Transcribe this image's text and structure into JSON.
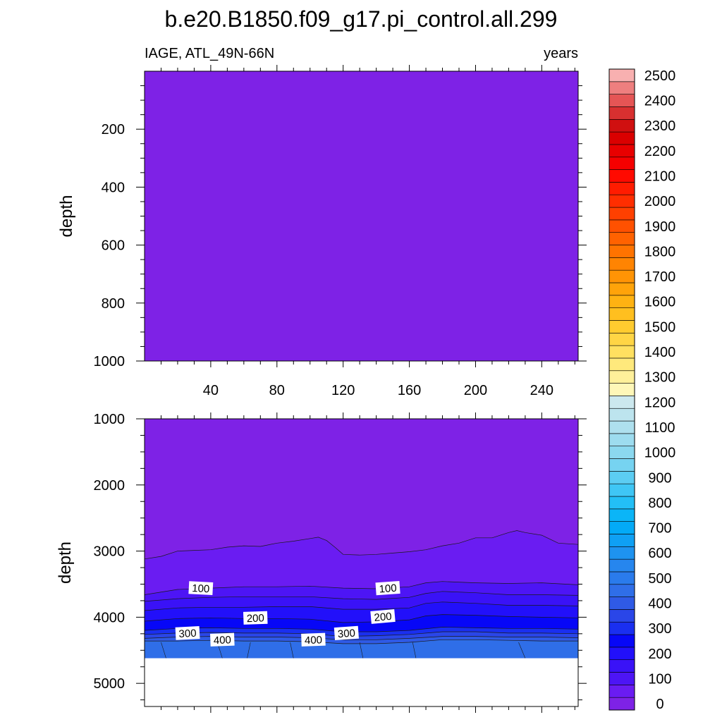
{
  "figure": {
    "title": "b.e20.B1850.f09_g17.pi_control.all.299",
    "subtitle_left": "IAGE, ATL_49N-66N",
    "subtitle_right": "years"
  },
  "chart_data": [
    {
      "type": "heatmap",
      "panel": "upper",
      "title": "",
      "xlabel": "",
      "ylabel": "depth",
      "xlim": [
        0,
        262
      ],
      "ylim": [
        1000,
        0
      ],
      "y_reversed": true,
      "x_ticks": [
        40,
        80,
        120,
        160,
        200,
        240
      ],
      "x_tick_labels": [
        "40",
        "80",
        "120",
        "160",
        "200",
        "240"
      ],
      "y_ticks": [
        200,
        400,
        600,
        800,
        1000
      ],
      "y_tick_labels": [
        "200",
        "400",
        "600",
        "800",
        "1000"
      ],
      "fill_level_lower": 0,
      "fill_level_upper": 50,
      "contour_lines": [],
      "contour_labels": []
    },
    {
      "type": "heatmap",
      "panel": "lower",
      "title": "",
      "xlabel": "",
      "ylabel": "depth",
      "xlim": [
        0,
        262
      ],
      "ylim": [
        5350,
        1000
      ],
      "y_reversed": true,
      "y_ticks": [
        1000,
        2000,
        3000,
        4000,
        5000
      ],
      "y_tick_labels": [
        "1000",
        "2000",
        "3000",
        "4000",
        "5000"
      ],
      "ocean_bottom_depth": 4620,
      "background_level_lower": 0,
      "background_level_upper": 50,
      "contour_lines": [
        {
          "level": 50,
          "level_lower": 50,
          "level_upper": 100,
          "points": [
            [
              0,
              3120
            ],
            [
              10,
              3080
            ],
            [
              20,
              3000
            ],
            [
              30,
              2990
            ],
            [
              40,
              2980
            ],
            [
              50,
              2940
            ],
            [
              60,
              2920
            ],
            [
              70,
              2930
            ],
            [
              80,
              2880
            ],
            [
              90,
              2850
            ],
            [
              100,
              2810
            ],
            [
              105,
              2790
            ],
            [
              110,
              2840
            ],
            [
              115,
              2940
            ],
            [
              120,
              3050
            ],
            [
              130,
              3060
            ],
            [
              140,
              3050
            ],
            [
              150,
              3030
            ],
            [
              160,
              3010
            ],
            [
              170,
              2980
            ],
            [
              180,
              2920
            ],
            [
              190,
              2880
            ],
            [
              200,
              2800
            ],
            [
              210,
              2800
            ],
            [
              220,
              2720
            ],
            [
              225,
              2690
            ],
            [
              230,
              2720
            ],
            [
              240,
              2760
            ],
            [
              250,
              2880
            ],
            [
              262,
              2900
            ]
          ]
        },
        {
          "level": 100,
          "level_lower": 100,
          "level_upper": 150,
          "points": [
            [
              0,
              3660
            ],
            [
              20,
              3580
            ],
            [
              40,
              3560
            ],
            [
              60,
              3540
            ],
            [
              80,
              3540
            ],
            [
              100,
              3530
            ],
            [
              120,
              3560
            ],
            [
              140,
              3570
            ],
            [
              160,
              3540
            ],
            [
              170,
              3480
            ],
            [
              180,
              3460
            ],
            [
              200,
              3480
            ],
            [
              220,
              3490
            ],
            [
              240,
              3480
            ],
            [
              262,
              3510
            ]
          ]
        },
        {
          "level": 150,
          "level_lower": 150,
          "level_upper": 200,
          "points": [
            [
              0,
              3760
            ],
            [
              20,
              3720
            ],
            [
              40,
              3700
            ],
            [
              60,
              3690
            ],
            [
              80,
              3690
            ],
            [
              100,
              3690
            ],
            [
              120,
              3720
            ],
            [
              140,
              3730
            ],
            [
              160,
              3700
            ],
            [
              170,
              3640
            ],
            [
              180,
              3610
            ],
            [
              200,
              3630
            ],
            [
              220,
              3660
            ],
            [
              240,
              3660
            ],
            [
              262,
              3670
            ]
          ]
        },
        {
          "level": 200,
          "level_lower": 200,
          "level_upper": 250,
          "points": [
            [
              0,
              3900
            ],
            [
              20,
              3860
            ],
            [
              40,
              3850
            ],
            [
              60,
              3850
            ],
            [
              80,
              3840
            ],
            [
              100,
              3840
            ],
            [
              120,
              3880
            ],
            [
              140,
              3880
            ],
            [
              160,
              3860
            ],
            [
              170,
              3790
            ],
            [
              180,
              3770
            ],
            [
              200,
              3790
            ],
            [
              220,
              3820
            ],
            [
              240,
              3820
            ],
            [
              262,
              3830
            ]
          ]
        },
        {
          "level": 250,
          "level_lower": 250,
          "level_upper": 300,
          "points": [
            [
              0,
              4060
            ],
            [
              20,
              4020
            ],
            [
              40,
              4010
            ],
            [
              60,
              4020
            ],
            [
              80,
              4020
            ],
            [
              100,
              4030
            ],
            [
              120,
              4080
            ],
            [
              140,
              4070
            ],
            [
              160,
              4040
            ],
            [
              170,
              3980
            ],
            [
              180,
              3960
            ],
            [
              200,
              3970
            ],
            [
              220,
              3990
            ],
            [
              240,
              4000
            ],
            [
              262,
              4010
            ]
          ]
        },
        {
          "level": 300,
          "level_lower": 300,
          "level_upper": 350,
          "points": [
            [
              0,
              4200
            ],
            [
              20,
              4170
            ],
            [
              40,
              4160
            ],
            [
              60,
              4170
            ],
            [
              80,
              4170
            ],
            [
              100,
              4180
            ],
            [
              120,
              4220
            ],
            [
              140,
              4220
            ],
            [
              160,
              4200
            ],
            [
              180,
              4150
            ],
            [
              200,
              4160
            ],
            [
              220,
              4170
            ],
            [
              240,
              4170
            ],
            [
              262,
              4180
            ]
          ]
        },
        {
          "level": 350,
          "level_lower": 350,
          "level_upper": 400,
          "points": [
            [
              0,
              4260
            ],
            [
              20,
              4240
            ],
            [
              40,
              4230
            ],
            [
              60,
              4240
            ],
            [
              80,
              4240
            ],
            [
              100,
              4250
            ],
            [
              120,
              4290
            ],
            [
              140,
              4280
            ],
            [
              160,
              4260
            ],
            [
              180,
              4220
            ],
            [
              200,
              4220
            ],
            [
              220,
              4240
            ],
            [
              240,
              4240
            ],
            [
              262,
              4250
            ]
          ]
        },
        {
          "level": 400,
          "level_lower": 400,
          "level_upper": 450,
          "points": [
            [
              0,
              4320
            ],
            [
              20,
              4300
            ],
            [
              40,
              4290
            ],
            [
              60,
              4300
            ],
            [
              80,
              4300
            ],
            [
              100,
              4310
            ],
            [
              120,
              4340
            ],
            [
              140,
              4340
            ],
            [
              160,
              4320
            ],
            [
              180,
              4290
            ],
            [
              200,
              4290
            ],
            [
              220,
              4300
            ],
            [
              240,
              4300
            ],
            [
              262,
              4310
            ]
          ]
        },
        {
          "level": 450,
          "level_lower": 450,
          "level_upper": 500,
          "points": [
            [
              0,
              4360
            ],
            [
              20,
              4360
            ],
            [
              40,
              4350
            ],
            [
              60,
              4360
            ],
            [
              80,
              4360
            ],
            [
              100,
              4370
            ],
            [
              120,
              4400
            ],
            [
              140,
              4400
            ],
            [
              160,
              4380
            ],
            [
              180,
              4340
            ],
            [
              200,
              4340
            ],
            [
              220,
              4350
            ],
            [
              240,
              4360
            ],
            [
              262,
              4360
            ]
          ]
        }
      ],
      "contour_labels": [
        {
          "text": "100",
          "x": 34,
          "y": 3560,
          "angle": 3
        },
        {
          "text": "100",
          "x": 147,
          "y": 3560,
          "angle": -4
        },
        {
          "text": "200",
          "x": 67,
          "y": 4010,
          "angle": -2
        },
        {
          "text": "200",
          "x": 144,
          "y": 3990,
          "angle": -5
        },
        {
          "text": "300",
          "x": 26,
          "y": 4240,
          "angle": -3
        },
        {
          "text": "300",
          "x": 122,
          "y": 4240,
          "angle": -4
        },
        {
          "text": "400",
          "x": 47,
          "y": 4340,
          "angle": -2
        },
        {
          "text": "400",
          "x": 102,
          "y": 4340,
          "angle": -2
        }
      ]
    }
  ],
  "colorbar": {
    "levels": [
      0,
      50,
      100,
      150,
      200,
      250,
      300,
      350,
      400,
      450,
      500,
      550,
      600,
      650,
      700,
      750,
      800,
      850,
      900,
      950,
      1000,
      1050,
      1100,
      1150,
      1200,
      1250,
      1300,
      1350,
      1400,
      1450,
      1500,
      1550,
      1600,
      1650,
      1700,
      1750,
      1800,
      1850,
      1900,
      1950,
      2000,
      2050,
      2100,
      2150,
      2200,
      2250,
      2300,
      2350,
      2400,
      2450,
      2500
    ],
    "label_values": [
      0,
      100,
      200,
      300,
      400,
      500,
      600,
      700,
      800,
      900,
      1000,
      1100,
      1200,
      1300,
      1400,
      1500,
      1600,
      1700,
      1800,
      1900,
      2000,
      2100,
      2200,
      2300,
      2400,
      2500
    ],
    "labels": [
      "0",
      "100",
      "200",
      "300",
      "400",
      "500",
      "600",
      "700",
      "800",
      "900",
      "1000",
      "1100",
      "1200",
      "1300",
      "1400",
      "1500",
      "1600",
      "1700",
      "1800",
      "1900",
      "2000",
      "2100",
      "2200",
      "2300",
      "2400",
      "2500"
    ],
    "colors": [
      "#7e22e6",
      "#6a1cf2",
      "#4d15f5",
      "#3a12f7",
      "#2210fa",
      "#0707f7",
      "#1a2ff0",
      "#2a46e8",
      "#2f5ae6",
      "#2f6ee8",
      "#2a7bec",
      "#2686ee",
      "#1e93f0",
      "#0fa0f4",
      "#03aaf7",
      "#0bb5f7",
      "#23bff6",
      "#3fc6f5",
      "#5ccdf3",
      "#76d3f1",
      "#8bd8ef",
      "#9ddcef",
      "#aee0ee",
      "#bde4ee",
      "#cce8ee",
      "#fff7b8",
      "#fff09a",
      "#ffe97c",
      "#ffe060",
      "#ffd545",
      "#ffcb2f",
      "#ffbf1f",
      "#ffb212",
      "#ffa30a",
      "#ff9405",
      "#ff8402",
      "#ff7300",
      "#ff6200",
      "#ff5100",
      "#ff4000",
      "#ff2e00",
      "#ff1c00",
      "#ff0a00",
      "#f50000",
      "#e80000",
      "#da0000",
      "#d01010",
      "#d83030",
      "#e55555",
      "#ee7f7f",
      "#f8b0b0"
    ]
  }
}
